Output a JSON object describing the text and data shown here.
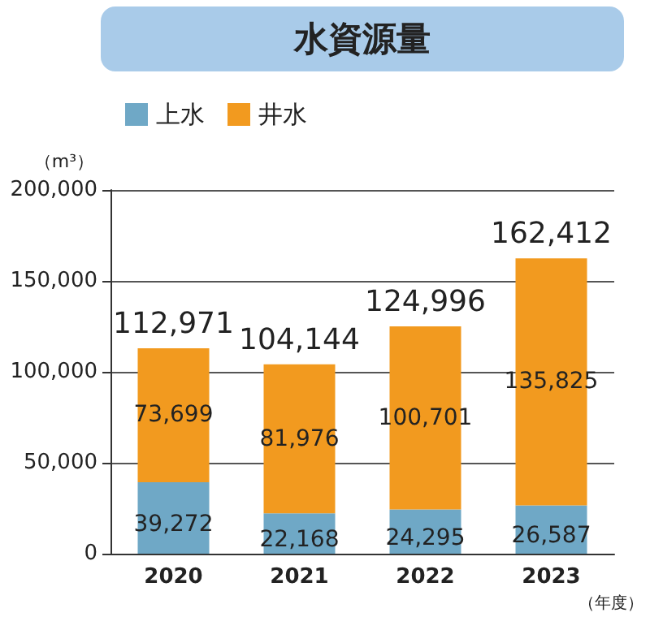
{
  "chart_data": {
    "type": "bar",
    "title": "水資源量",
    "ylabel": "（m³）",
    "xlabel": "（年度）",
    "categories": [
      "2020",
      "2021",
      "2022",
      "2023"
    ],
    "series": [
      {
        "name": "上水",
        "color": "#6fa8c6",
        "values": [
          39272,
          22168,
          24295,
          26587
        ],
        "value_labels": [
          "39,272",
          "22,168",
          "24,295",
          "26,587"
        ]
      },
      {
        "name": "井水",
        "color": "#f29a1f",
        "values": [
          73699,
          81976,
          100701,
          135825
        ],
        "value_labels": [
          "73,699",
          "81,976",
          "100,701",
          "135,825"
        ]
      }
    ],
    "stacked": true,
    "totals": [
      "112,971",
      "104,144",
      "124,996",
      "162,412"
    ],
    "ylim": [
      0,
      200000
    ],
    "yticks": [
      0,
      {
        "value": 50000,
        "label": "50,000"
      },
      {
        "value": 100000,
        "label": "100,000"
      },
      {
        "value": 150000,
        "label": "150,000"
      },
      {
        "value": 200000,
        "label": "200,000"
      }
    ],
    "grid": "y",
    "legend": "top left"
  }
}
